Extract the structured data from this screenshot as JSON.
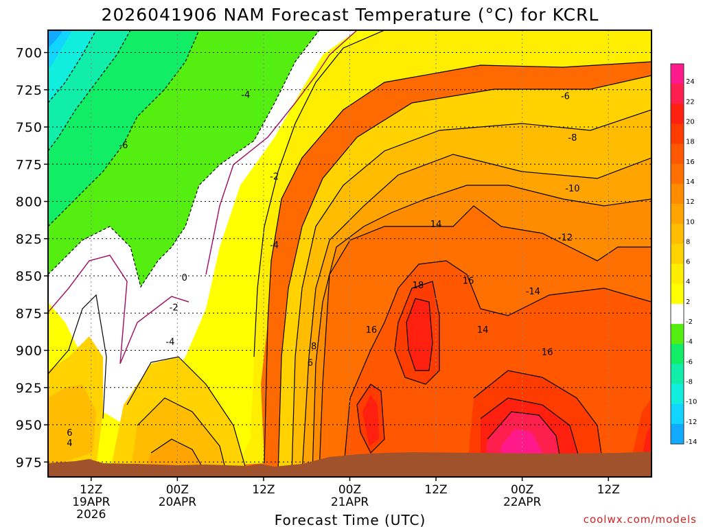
{
  "chart_data": {
    "type": "heatmap",
    "title": "2026041906 NAM Forecast Temperature (°C) for KCRL",
    "xlabel": "Forecast Time (UTC)",
    "ylabel": "",
    "credit": "coolwx.com/models",
    "y_ticks": [
      "700",
      "725",
      "750",
      "775",
      "800",
      "825",
      "850",
      "875",
      "900",
      "925",
      "950",
      "975"
    ],
    "ylim": [
      685,
      985
    ],
    "y_inverted": true,
    "x_ticks": [
      {
        "line1": "12Z",
        "line2": "19APR",
        "line3": "2026"
      },
      {
        "line1": "00Z",
        "line2": "20APR",
        "line3": ""
      },
      {
        "line1": "12Z",
        "line2": "",
        "line3": ""
      },
      {
        "line1": "00Z",
        "line2": "21APR",
        "line3": ""
      },
      {
        "line1": "12Z",
        "line2": "",
        "line3": ""
      },
      {
        "line1": "00Z",
        "line2": "22APR",
        "line3": ""
      },
      {
        "line1": "12Z",
        "line2": "",
        "line3": ""
      }
    ],
    "x_tick_hours": [
      6,
      18,
      30,
      42,
      54,
      66,
      78
    ],
    "xlim_hours": [
      0,
      84
    ],
    "grid": true,
    "colorbar": {
      "labels": [
        "24",
        "22",
        "20",
        "18",
        "16",
        "14",
        "12",
        "10",
        "8",
        "6",
        "4",
        "2",
        "-2",
        "-4",
        "-6",
        "-8",
        "-10",
        "-12",
        "-14"
      ],
      "colors": [
        "#ff1a8c",
        "#ff1f4f",
        "#ff2010",
        "#ff3c00",
        "#ff5800",
        "#ff7000",
        "#ff8c00",
        "#ffa400",
        "#ffbc00",
        "#ffd200",
        "#ffee00",
        "#ffff00",
        "#ffffff",
        "#55ee11",
        "#11ee66",
        "#11eeaa",
        "#11eedd",
        "#11d4ff",
        "#11aaff"
      ]
    },
    "contour_labels": [
      {
        "text": "-4",
        "hour": 27.5,
        "p": 728
      },
      {
        "text": "-6",
        "hour": 10.5,
        "p": 762
      },
      {
        "text": "-2",
        "hour": 31.5,
        "p": 783
      },
      {
        "text": "-4",
        "hour": 31.5,
        "p": 829
      },
      {
        "text": "0",
        "hour": 19.0,
        "p": 851
      },
      {
        "text": "-2",
        "hour": 17.5,
        "p": 871
      },
      {
        "text": "-4",
        "hour": 17.0,
        "p": 894
      },
      {
        "text": "8",
        "hour": 37.0,
        "p": 897
      },
      {
        "text": "6",
        "hour": 36.5,
        "p": 908
      },
      {
        "text": "6",
        "hour": 3.0,
        "p": 955
      },
      {
        "text": "4",
        "hour": 3.0,
        "p": 962
      },
      {
        "text": "-6",
        "hour": 72.0,
        "p": 729
      },
      {
        "text": "-8",
        "hour": 73.0,
        "p": 757
      },
      {
        "text": "-10",
        "hour": 73.0,
        "p": 791
      },
      {
        "text": "-12",
        "hour": 72.0,
        "p": 824
      },
      {
        "text": "14",
        "hour": 54.0,
        "p": 815
      },
      {
        "text": "-14",
        "hour": 67.5,
        "p": 860
      },
      {
        "text": "18",
        "hour": 51.5,
        "p": 856
      },
      {
        "text": "16",
        "hour": 58.5,
        "p": 853
      },
      {
        "text": "16",
        "hour": 45.0,
        "p": 886
      },
      {
        "text": "14",
        "hour": 60.5,
        "p": 886
      },
      {
        "text": "16",
        "hour": 69.5,
        "p": 901
      }
    ]
  }
}
